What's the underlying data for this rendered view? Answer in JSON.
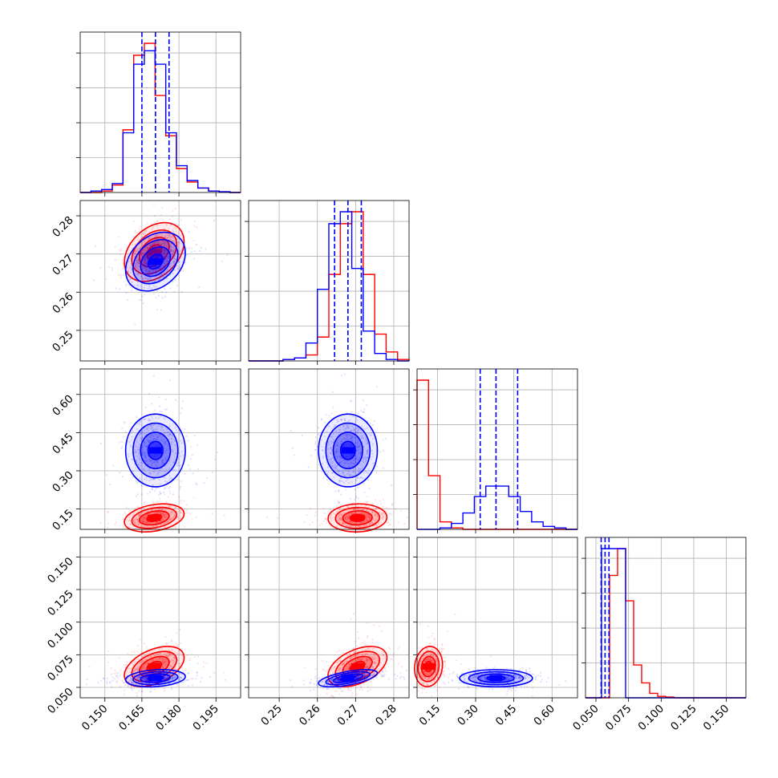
{
  "chart_data": {
    "type": "corner",
    "title": "",
    "parameters": [
      "",
      "",
      "",
      ""
    ],
    "ranges": [
      [
        0.14,
        0.205
      ],
      [
        0.242,
        0.284
      ],
      [
        0.07,
        0.7
      ],
      [
        0.042,
        0.165
      ]
    ],
    "ticks": [
      [
        "0.150",
        "0.165",
        "0.180",
        "0.195"
      ],
      [
        "0.25",
        "0.26",
        "0.27",
        "0.28"
      ],
      [
        "0.15",
        "0.30",
        "0.45",
        "0.60"
      ],
      [
        "0.050",
        "0.075",
        "0.100",
        "0.125",
        "0.150"
      ]
    ],
    "tick_values": [
      [
        0.15,
        0.165,
        0.18,
        0.195
      ],
      [
        0.25,
        0.26,
        0.27,
        0.28
      ],
      [
        0.15,
        0.3,
        0.45,
        0.6
      ],
      [
        0.05,
        0.075,
        0.1,
        0.125,
        0.15
      ]
    ],
    "grid": true,
    "colors": {
      "series_a": "#ff0000",
      "series_b": "#0000ff"
    },
    "series": [
      {
        "color": "#ff0000",
        "mean": [
          0.17,
          0.2705,
          0.115,
          0.066
        ],
        "std": [
          0.0055,
          0.0035,
          0.025,
          0.007
        ],
        "correlation": [
          [
            1.0,
            0.35,
            0.3,
            0.45
          ],
          [
            0.35,
            1.0,
            0.05,
            0.45
          ],
          [
            0.3,
            0.05,
            1.0,
            0.1
          ],
          [
            0.45,
            0.45,
            0.1,
            1.0
          ]
        ],
        "hist_x1": [
          0.0,
          0.0,
          0.01,
          0.05,
          0.42,
          0.92,
          1.0,
          0.65,
          0.38,
          0.16,
          0.07,
          0.03,
          0.01,
          0.005,
          0.0
        ],
        "hist_x2": [
          0.0,
          0.0,
          0.0,
          0.01,
          0.02,
          0.04,
          0.16,
          0.58,
          0.92,
          1.0,
          0.58,
          0.18,
          0.06,
          0.01
        ],
        "hist_x3": [
          1.0,
          0.36,
          0.05,
          0.01,
          0.0,
          0.0,
          0.0,
          0.0,
          0.0,
          0.0,
          0.0,
          0.0,
          0.0,
          0.0
        ],
        "hist_x4": [
          0.0,
          0.0,
          0.0,
          0.82,
          1.0,
          0.65,
          0.22,
          0.1,
          0.03,
          0.01,
          0.005,
          0.0,
          0.0,
          0.0,
          0.0,
          0.0,
          0.0,
          0.0,
          0.0,
          0.0
        ]
      },
      {
        "color": "#0000ff",
        "mean": [
          0.1705,
          0.268,
          0.38,
          0.057
        ],
        "std": [
          0.0055,
          0.0035,
          0.065,
          0.003
        ],
        "correlation": [
          [
            1.0,
            0.3,
            0.0,
            0.2
          ],
          [
            0.3,
            1.0,
            0.0,
            0.6
          ],
          [
            0.0,
            0.0,
            1.0,
            0.0
          ],
          [
            0.2,
            0.6,
            0.0,
            1.0
          ]
        ],
        "quantiles": [
          [
            0.165,
            0.1705,
            0.176
          ],
          [
            0.2645,
            0.268,
            0.2715
          ],
          [
            0.318,
            0.38,
            0.465
          ],
          [
            0.054,
            0.057,
            0.06
          ]
        ],
        "hist_x1": [
          0.0,
          0.01,
          0.02,
          0.06,
          0.4,
          0.86,
          0.95,
          0.86,
          0.4,
          0.18,
          0.08,
          0.03,
          0.01,
          0.005,
          0.0
        ],
        "hist_x2": [
          0.0,
          0.0,
          0.0,
          0.01,
          0.02,
          0.12,
          0.48,
          0.92,
          1.0,
          0.62,
          0.2,
          0.05,
          0.01,
          0.0
        ],
        "hist_x3": [
          0.0,
          0.0,
          0.01,
          0.04,
          0.11,
          0.22,
          0.29,
          0.29,
          0.22,
          0.12,
          0.05,
          0.02,
          0.01,
          0.0
        ],
        "hist_x4": [
          0.0,
          0.0,
          1.0,
          1.0,
          1.0,
          0.0,
          0.0,
          0.0,
          0.0,
          0.0,
          0.0,
          0.0,
          0.0,
          0.0,
          0.0,
          0.0,
          0.0,
          0.0,
          0.0,
          0.0
        ]
      }
    ]
  }
}
